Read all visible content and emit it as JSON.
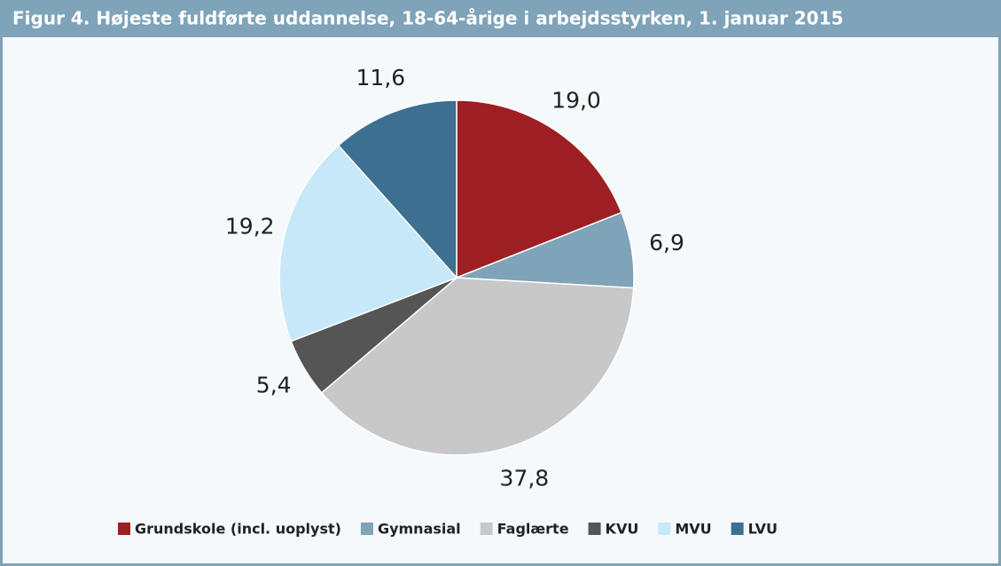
{
  "chart_data": {
    "type": "pie",
    "title": "Figur 4. Højeste fuldførte uddannelse, 18-64-årige i arbejdsstyrken, 1. januar 2015",
    "categories": [
      "Grundskole (incl. uoplyst)",
      "Gymnasial",
      "Faglærte",
      "KVU",
      "MVU",
      "LVU"
    ],
    "values": [
      19.0,
      6.9,
      37.8,
      5.4,
      19.2,
      11.6
    ],
    "value_labels": [
      "19,0",
      "6,9",
      "37,8",
      "5,4",
      "19,2",
      "11,6"
    ],
    "colors": [
      "#9e1f23",
      "#7fa3b8",
      "#c8c8c8",
      "#555555",
      "#c7e8f8",
      "#3d7090"
    ],
    "legend": "bottom"
  }
}
